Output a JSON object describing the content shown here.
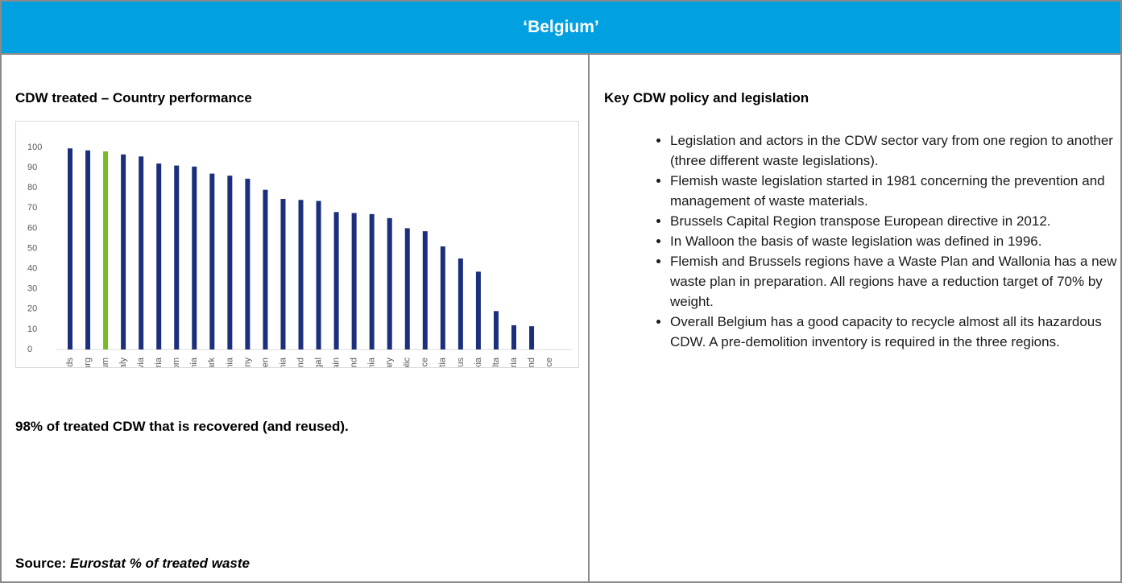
{
  "header": {
    "title": "‘Belgium’"
  },
  "left": {
    "heading": "CDW treated – Country performance",
    "statement": "98% of treated CDW that is recovered (and reused).",
    "source_label": "Source:",
    "source_text": "Eurostat % of treated waste"
  },
  "chart_data": {
    "type": "bar",
    "categories": [
      "Netherlands",
      "Luxembourg",
      "Belgium",
      "Italy",
      "Latvia",
      "Austria",
      "United Kingdom",
      "Slovenia",
      "Denmark",
      "Lithuania",
      "Germany",
      "Sweden",
      "Estonia",
      "Ireland",
      "Portugal",
      "Spain",
      "Poland",
      "Romania",
      "Hungary",
      "Czech Republic",
      "France",
      "Croatia",
      "Cyprus",
      "Slovakia",
      "Malta",
      "Bulgaria",
      "Finland",
      "Greece"
    ],
    "values": [
      99.5,
      98.5,
      98,
      96.5,
      95.5,
      92,
      91,
      90.5,
      87,
      86,
      84.5,
      79,
      74.5,
      74,
      73.5,
      68,
      67.5,
      67,
      65,
      60,
      58.5,
      51,
      45,
      38.5,
      19,
      12,
      11.5,
      0
    ],
    "colors": [
      "#1b2f7c",
      "#1b2f7c",
      "#7ab929",
      "#1b2f7c",
      "#1b2f7c",
      "#1b2f7c",
      "#1b2f7c",
      "#1b2f7c",
      "#1b2f7c",
      "#1b2f7c",
      "#1b2f7c",
      "#1b2f7c",
      "#1b2f7c",
      "#1b2f7c",
      "#1b2f7c",
      "#1b2f7c",
      "#1b2f7c",
      "#1b2f7c",
      "#1b2f7c",
      "#1b2f7c",
      "#1b2f7c",
      "#1b2f7c",
      "#1b2f7c",
      "#1b2f7c",
      "#1b2f7c",
      "#1b2f7c",
      "#1b2f7c",
      "#1b2f7c"
    ],
    "ylim": [
      0,
      100
    ],
    "yticks": [
      0,
      10,
      20,
      30,
      40,
      50,
      60,
      70,
      80,
      90,
      100
    ],
    "grid": false
  },
  "right": {
    "heading": "Key CDW policy and legislation",
    "bullets": [
      "Legislation and actors in the CDW sector vary from one region to another (three different waste legislations).",
      "Flemish waste legislation started in 1981 concerning the prevention and management of waste materials.",
      "Brussels Capital Region transpose European directive in 2012.",
      "In Walloon the basis of waste legislation was defined in 1996.",
      "Flemish and Brussels regions have a Waste Plan and Wallonia has a new waste plan in preparation. All regions have a reduction target of 70% by weight.",
      "Overall Belgium has a good capacity to recycle almost all its hazardous CDW. A pre-demolition inventory is required in the three regions."
    ]
  }
}
